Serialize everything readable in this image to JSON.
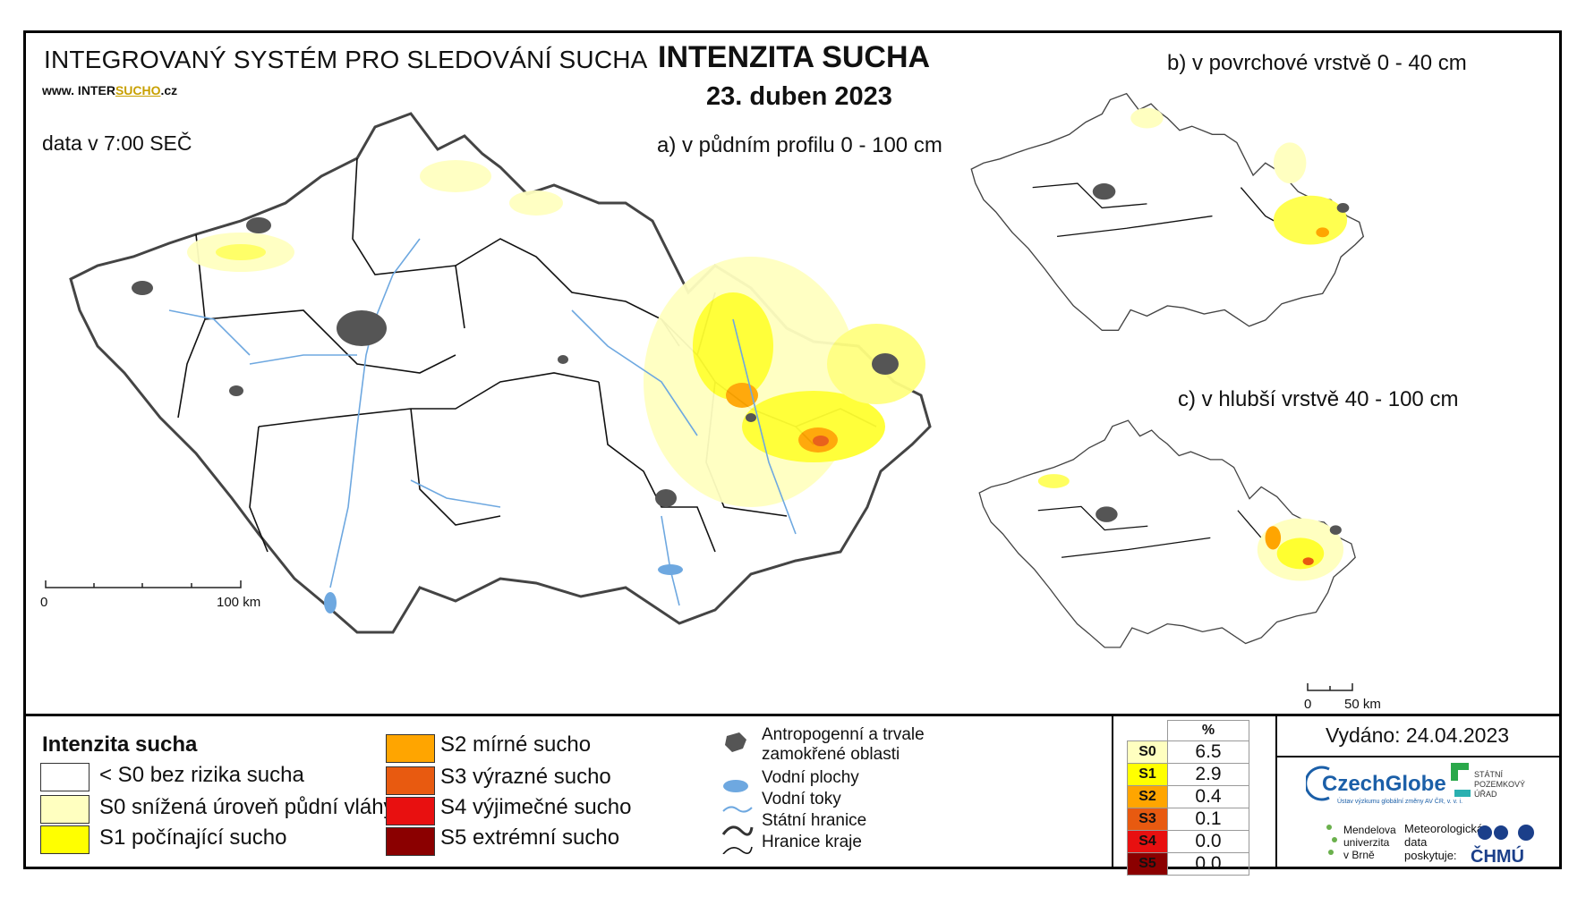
{
  "header": {
    "system_title": "INTEGROVANÝ SYSTÉM PRO SLEDOVÁNÍ SUCHA",
    "website_prefix": "www. INTER",
    "website_highlight": "SUCHO",
    "website_suffix": ".cz",
    "data_time": "data v 7:00 SEČ",
    "main_title": "INTENZITA SUCHA",
    "date": "23. duben 2023"
  },
  "maps": {
    "a_title": "a) v půdním profilu 0 - 100 cm",
    "b_title": "b) v povrchové vrstvě 0 - 40 cm",
    "c_title": "c) v hlubší vrstvě 40 - 100 cm",
    "scale_main_zero": "0",
    "scale_main_end": "100 km",
    "scale_small_zero": "0",
    "scale_small_end": "50 km"
  },
  "legend": {
    "title": "Intenzita sucha",
    "classes": [
      {
        "label": "< S0 bez rizika sucha",
        "color": "#ffffff"
      },
      {
        "label": "S0 snížená úroveň půdní vláhy",
        "color": "#ffffc0"
      },
      {
        "label": "S1 počínající sucho",
        "color": "#ffff00"
      },
      {
        "label": "S2 mírné sucho",
        "color": "#ffa500"
      },
      {
        "label": "S3 výrazné sucho",
        "color": "#e85a10"
      },
      {
        "label": "S4 výjimečné sucho",
        "color": "#e81010"
      },
      {
        "label": "S5 extrémní sucho",
        "color": "#8b0000"
      }
    ]
  },
  "symbols": {
    "urban_line1": "Antropogenní a trvale",
    "urban_line2": "zamokřené oblasti",
    "water_bodies": "Vodní plochy",
    "rivers": "Vodní toky",
    "state_border": "Státní hranice",
    "region_border": "Hranice kraje"
  },
  "percent_table": {
    "header": "%",
    "rows": [
      {
        "cls": "S0",
        "value": "6.5",
        "color": "#ffffc0"
      },
      {
        "cls": "S1",
        "value": "2.9",
        "color": "#ffff00"
      },
      {
        "cls": "S2",
        "value": "0.4",
        "color": "#ffa500"
      },
      {
        "cls": "S3",
        "value": "0.1",
        "color": "#e85a10"
      },
      {
        "cls": "S4",
        "value": "0.0",
        "color": "#e81010"
      },
      {
        "cls": "S5",
        "value": "0.0",
        "color": "#8b0000"
      }
    ]
  },
  "footer": {
    "issued": "Vydáno: 24.04.2023",
    "czechglobe": "CzechGlobe",
    "czechglobe_sub": "Ústav výzkumu globální změny AV ČR, v. v. i.",
    "mendel_1": "Mendelova",
    "mendel_2": "univerzita",
    "mendel_3": "v Brně",
    "met_1": "Meteorologická",
    "met_2": "data",
    "met_3": "poskytuje:",
    "chmu": "ČHMÚ",
    "spu_1": "STÁTNÍ",
    "spu_2": "POZEMKOVÝ",
    "spu_3": "ÚŘAD"
  }
}
